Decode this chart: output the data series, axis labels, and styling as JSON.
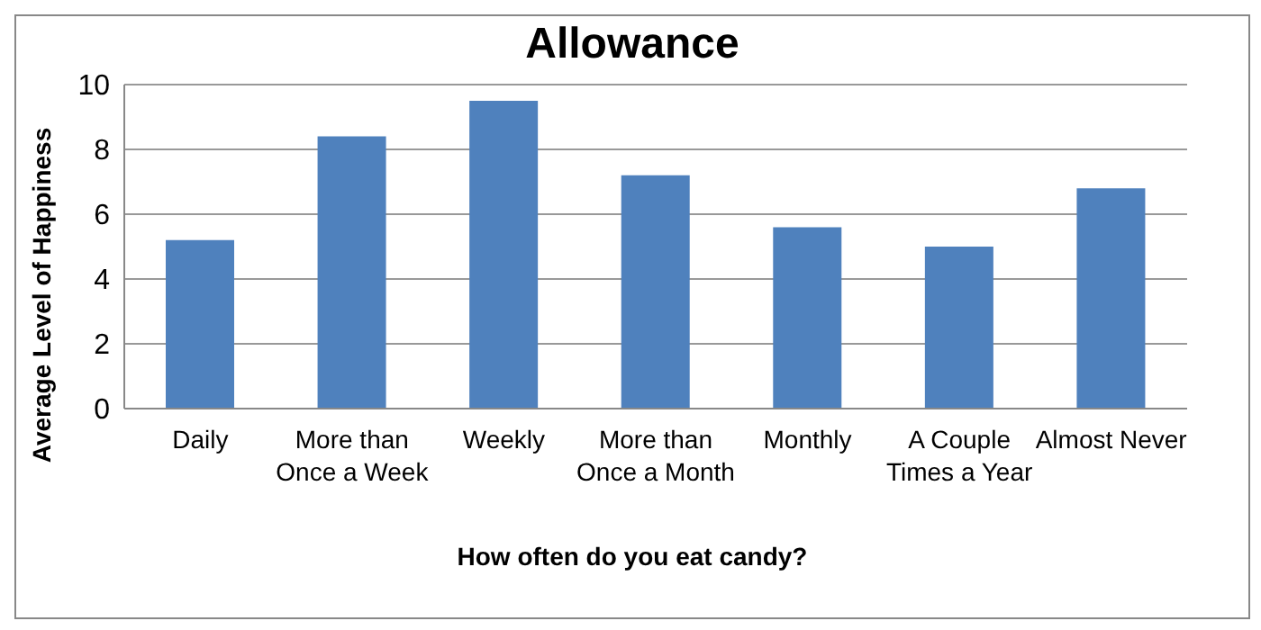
{
  "chart_data": {
    "type": "bar",
    "title": "Allowance",
    "xlabel": "How often do you eat candy?",
    "ylabel": "Average Level of Happiness",
    "categories": [
      "Daily",
      "More than Once a Week",
      "Weekly",
      "More than Once a Month",
      "Monthly",
      "A Couple Times a Year",
      "Almost Never"
    ],
    "values": [
      5.2,
      8.4,
      9.5,
      7.2,
      5.6,
      5.0,
      6.8
    ],
    "color": "#4f81bd",
    "ylim": [
      0,
      10
    ],
    "yticks": [
      0,
      2,
      4,
      6,
      8,
      10
    ],
    "grid": "y",
    "legend": false
  }
}
